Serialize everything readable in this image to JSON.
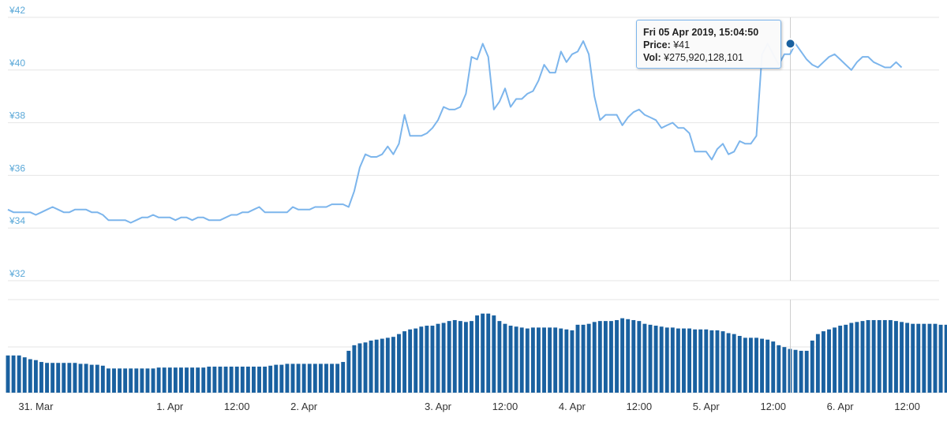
{
  "chart_data": {
    "type": "line",
    "currency": "¥",
    "y_ticks": [
      "¥42",
      "¥40",
      "¥38",
      "¥36",
      "¥34",
      "¥32"
    ],
    "y_tick_values": [
      42,
      40,
      38,
      36,
      34,
      32
    ],
    "ylim": [
      32,
      42
    ],
    "x_ticks": [
      "31. Mar",
      "1. Apr",
      "12:00",
      "2. Apr",
      "3. Apr",
      "12:00",
      "4. Apr",
      "12:00",
      "5. Apr",
      "12:00",
      "6. Apr",
      "12:00"
    ],
    "x_tick_times": [
      "2019-03-31T00:00",
      "2019-04-01T00:00",
      "2019-04-01T12:00",
      "2019-04-02T00:00",
      "2019-04-03T00:00",
      "2019-04-03T12:00",
      "2019-04-04T00:00",
      "2019-04-04T12:00",
      "2019-04-05T00:00",
      "2019-04-05T12:00",
      "2019-04-06T00:00",
      "2019-04-06T12:00"
    ],
    "xlim": [
      "2019-03-30T19:00",
      "2019-04-06T17:00"
    ],
    "price_series": {
      "name": "Price",
      "color": "#7cb5ec",
      "start_time": "2019-03-30T19:00",
      "interval_hours": 1,
      "values": [
        34.7,
        34.6,
        34.6,
        34.6,
        34.6,
        34.5,
        34.6,
        34.7,
        34.8,
        34.7,
        34.6,
        34.6,
        34.7,
        34.7,
        34.7,
        34.6,
        34.6,
        34.5,
        34.3,
        34.3,
        34.3,
        34.3,
        34.2,
        34.3,
        34.4,
        34.4,
        34.5,
        34.4,
        34.4,
        34.4,
        34.3,
        34.4,
        34.4,
        34.3,
        34.4,
        34.4,
        34.3,
        34.3,
        34.3,
        34.4,
        34.5,
        34.5,
        34.6,
        34.6,
        34.7,
        34.8,
        34.6,
        34.6,
        34.6,
        34.6,
        34.6,
        34.8,
        34.7,
        34.7,
        34.7,
        34.8,
        34.8,
        34.8,
        34.9,
        34.9,
        34.9,
        34.8,
        35.4,
        36.3,
        36.8,
        36.7,
        36.7,
        36.8,
        37.1,
        36.8,
        37.2,
        38.3,
        37.5,
        37.5,
        37.5,
        37.6,
        37.8,
        38.1,
        38.6,
        38.5,
        38.5,
        38.6,
        39.1,
        40.5,
        40.4,
        41.0,
        40.5,
        38.5,
        38.8,
        39.3,
        38.6,
        38.9,
        38.9,
        39.1,
        39.2,
        39.6,
        40.2,
        39.9,
        39.9,
        40.7,
        40.3,
        40.6,
        40.7,
        41.1,
        40.6,
        39.0,
        38.1,
        38.3,
        38.3,
        38.3,
        37.9,
        38.2,
        38.4,
        38.5,
        38.3,
        38.2,
        38.1,
        37.8,
        37.9,
        38.0,
        37.8,
        37.8,
        37.6,
        36.9,
        36.9,
        36.9,
        36.6,
        37.0,
        37.2,
        36.8,
        36.9,
        37.3,
        37.2,
        37.2,
        37.5,
        40.6,
        41.0,
        40.6,
        40.2,
        40.6,
        40.6,
        41.0,
        40.7,
        40.4,
        40.2,
        40.1,
        40.3,
        40.5,
        40.6,
        40.4,
        40.2,
        40.0,
        40.3,
        40.5,
        40.5,
        40.3,
        40.2,
        40.1,
        40.1,
        40.3,
        40.1
      ]
    },
    "volume_series": {
      "name": "Vol",
      "color": "#1a61a0",
      "values": [
        0.4,
        0.4,
        0.4,
        0.38,
        0.36,
        0.35,
        0.33,
        0.32,
        0.32,
        0.32,
        0.32,
        0.32,
        0.32,
        0.31,
        0.31,
        0.3,
        0.3,
        0.29,
        0.26,
        0.26,
        0.26,
        0.26,
        0.26,
        0.26,
        0.26,
        0.26,
        0.26,
        0.27,
        0.27,
        0.27,
        0.27,
        0.27,
        0.27,
        0.27,
        0.27,
        0.27,
        0.28,
        0.28,
        0.28,
        0.28,
        0.28,
        0.28,
        0.28,
        0.28,
        0.28,
        0.28,
        0.28,
        0.29,
        0.3,
        0.3,
        0.31,
        0.31,
        0.31,
        0.31,
        0.31,
        0.31,
        0.31,
        0.31,
        0.31,
        0.31,
        0.33,
        0.45,
        0.51,
        0.53,
        0.54,
        0.56,
        0.57,
        0.58,
        0.59,
        0.6,
        0.63,
        0.66,
        0.68,
        0.69,
        0.71,
        0.72,
        0.72,
        0.74,
        0.75,
        0.77,
        0.78,
        0.77,
        0.76,
        0.77,
        0.83,
        0.85,
        0.85,
        0.83,
        0.77,
        0.74,
        0.72,
        0.71,
        0.7,
        0.69,
        0.7,
        0.7,
        0.7,
        0.7,
        0.7,
        0.69,
        0.68,
        0.67,
        0.73,
        0.73,
        0.74,
        0.76,
        0.77,
        0.77,
        0.77,
        0.78,
        0.8,
        0.79,
        0.78,
        0.77,
        0.74,
        0.73,
        0.72,
        0.71,
        0.7,
        0.7,
        0.69,
        0.69,
        0.69,
        0.68,
        0.68,
        0.68,
        0.67,
        0.67,
        0.66,
        0.64,
        0.63,
        0.61,
        0.59,
        0.59,
        0.59,
        0.58,
        0.57,
        0.55,
        0.51,
        0.49,
        0.47,
        0.46,
        0.45,
        0.45,
        0.56,
        0.63,
        0.66,
        0.68,
        0.7,
        0.72,
        0.73,
        0.75,
        0.76,
        0.77,
        0.78,
        0.78,
        0.78,
        0.78,
        0.78,
        0.77,
        0.76,
        0.75,
        0.74,
        0.74,
        0.74,
        0.74,
        0.74,
        0.73,
        0.73,
        0.73,
        0.73,
        0.62,
        0.55
      ]
    },
    "crosshair_time": "2019-04-05T15:04:50",
    "tooltip": {
      "date": "Fri 05 Apr 2019, 15:04:50",
      "price_label": "Price:",
      "price_value": "¥41",
      "vol_label": "Vol:",
      "vol_value": "¥275,920,128,101"
    },
    "grid": true
  }
}
